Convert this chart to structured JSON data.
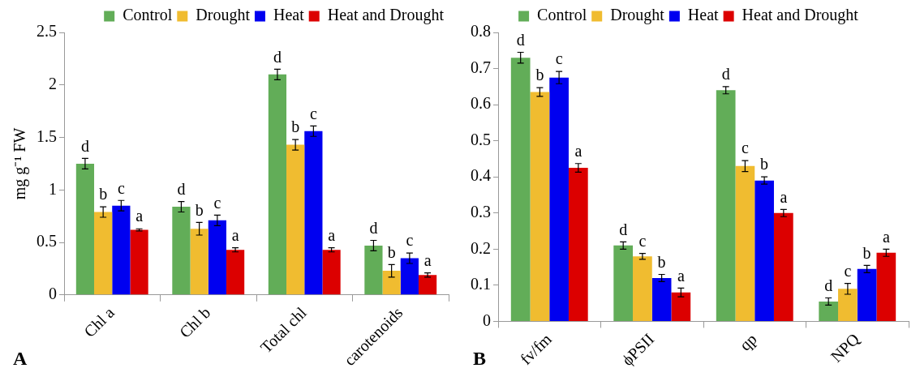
{
  "chart_data": [
    {
      "type": "bar",
      "ylabel": "mg g⁻¹ FW",
      "categories": [
        "Chl a",
        "Chl b",
        "Total chl",
        "carotenoids"
      ],
      "ylim": [
        0,
        2.5
      ],
      "yticks": [
        0,
        0.5,
        1,
        1.5,
        2,
        2.5
      ],
      "legend": "top right",
      "annotations": [
        "A"
      ],
      "series": [
        {
          "name": "Control",
          "color": "#62ad58",
          "values": [
            1.25,
            0.84,
            2.1,
            0.47
          ],
          "errors": [
            0.05,
            0.05,
            0.05,
            0.05
          ],
          "value_labels": [
            "d",
            "d",
            "d",
            "d"
          ]
        },
        {
          "name": "Drought",
          "color": "#f0bc30",
          "values": [
            0.79,
            0.63,
            1.43,
            0.23
          ],
          "errors": [
            0.05,
            0.06,
            0.05,
            0.06
          ],
          "value_labels": [
            "b",
            "b",
            "b",
            "b"
          ]
        },
        {
          "name": "Heat",
          "color": "#0000f0",
          "values": [
            0.85,
            0.71,
            1.56,
            0.35
          ],
          "errors": [
            0.05,
            0.05,
            0.05,
            0.05
          ],
          "value_labels": [
            "c",
            "c",
            "c",
            "c"
          ]
        },
        {
          "name": "Heat and Drought",
          "color": "#dc0000",
          "values": [
            0.62,
            0.43,
            0.43,
            0.19
          ],
          "errors": [
            0.01,
            0.02,
            0.02,
            0.02
          ],
          "value_labels": [
            "a",
            "a",
            "a",
            "a"
          ]
        }
      ]
    },
    {
      "type": "bar",
      "categories": [
        "fv/fm",
        "ϕPSII",
        "qp",
        "NPQ"
      ],
      "ylim": [
        0,
        0.8
      ],
      "yticks": [
        0,
        0.1,
        0.2,
        0.3,
        0.4,
        0.5,
        0.6,
        0.7,
        0.8
      ],
      "legend": "top",
      "annotations": [
        "B"
      ],
      "series": [
        {
          "name": "Control",
          "color": "#62ad58",
          "values": [
            0.73,
            0.21,
            0.64,
            0.055
          ],
          "errors": [
            0.015,
            0.01,
            0.01,
            0.01
          ],
          "value_labels": [
            "d",
            "d",
            "d",
            "d"
          ]
        },
        {
          "name": "Drought",
          "color": "#f0bc30",
          "values": [
            0.635,
            0.18,
            0.43,
            0.09
          ],
          "errors": [
            0.012,
            0.008,
            0.015,
            0.015
          ],
          "value_labels": [
            "b",
            "c",
            "c",
            "c"
          ]
        },
        {
          "name": "Heat",
          "color": "#0000f0",
          "values": [
            0.675,
            0.12,
            0.39,
            0.145
          ],
          "errors": [
            0.017,
            0.01,
            0.01,
            0.01
          ],
          "value_labels": [
            "c",
            "b",
            "b",
            "b"
          ]
        },
        {
          "name": "Heat and Drought",
          "color": "#dc0000",
          "values": [
            0.425,
            0.08,
            0.3,
            0.19
          ],
          "errors": [
            0.012,
            0.012,
            0.01,
            0.01
          ],
          "value_labels": [
            "a",
            "a",
            "a",
            "a"
          ]
        }
      ]
    }
  ]
}
